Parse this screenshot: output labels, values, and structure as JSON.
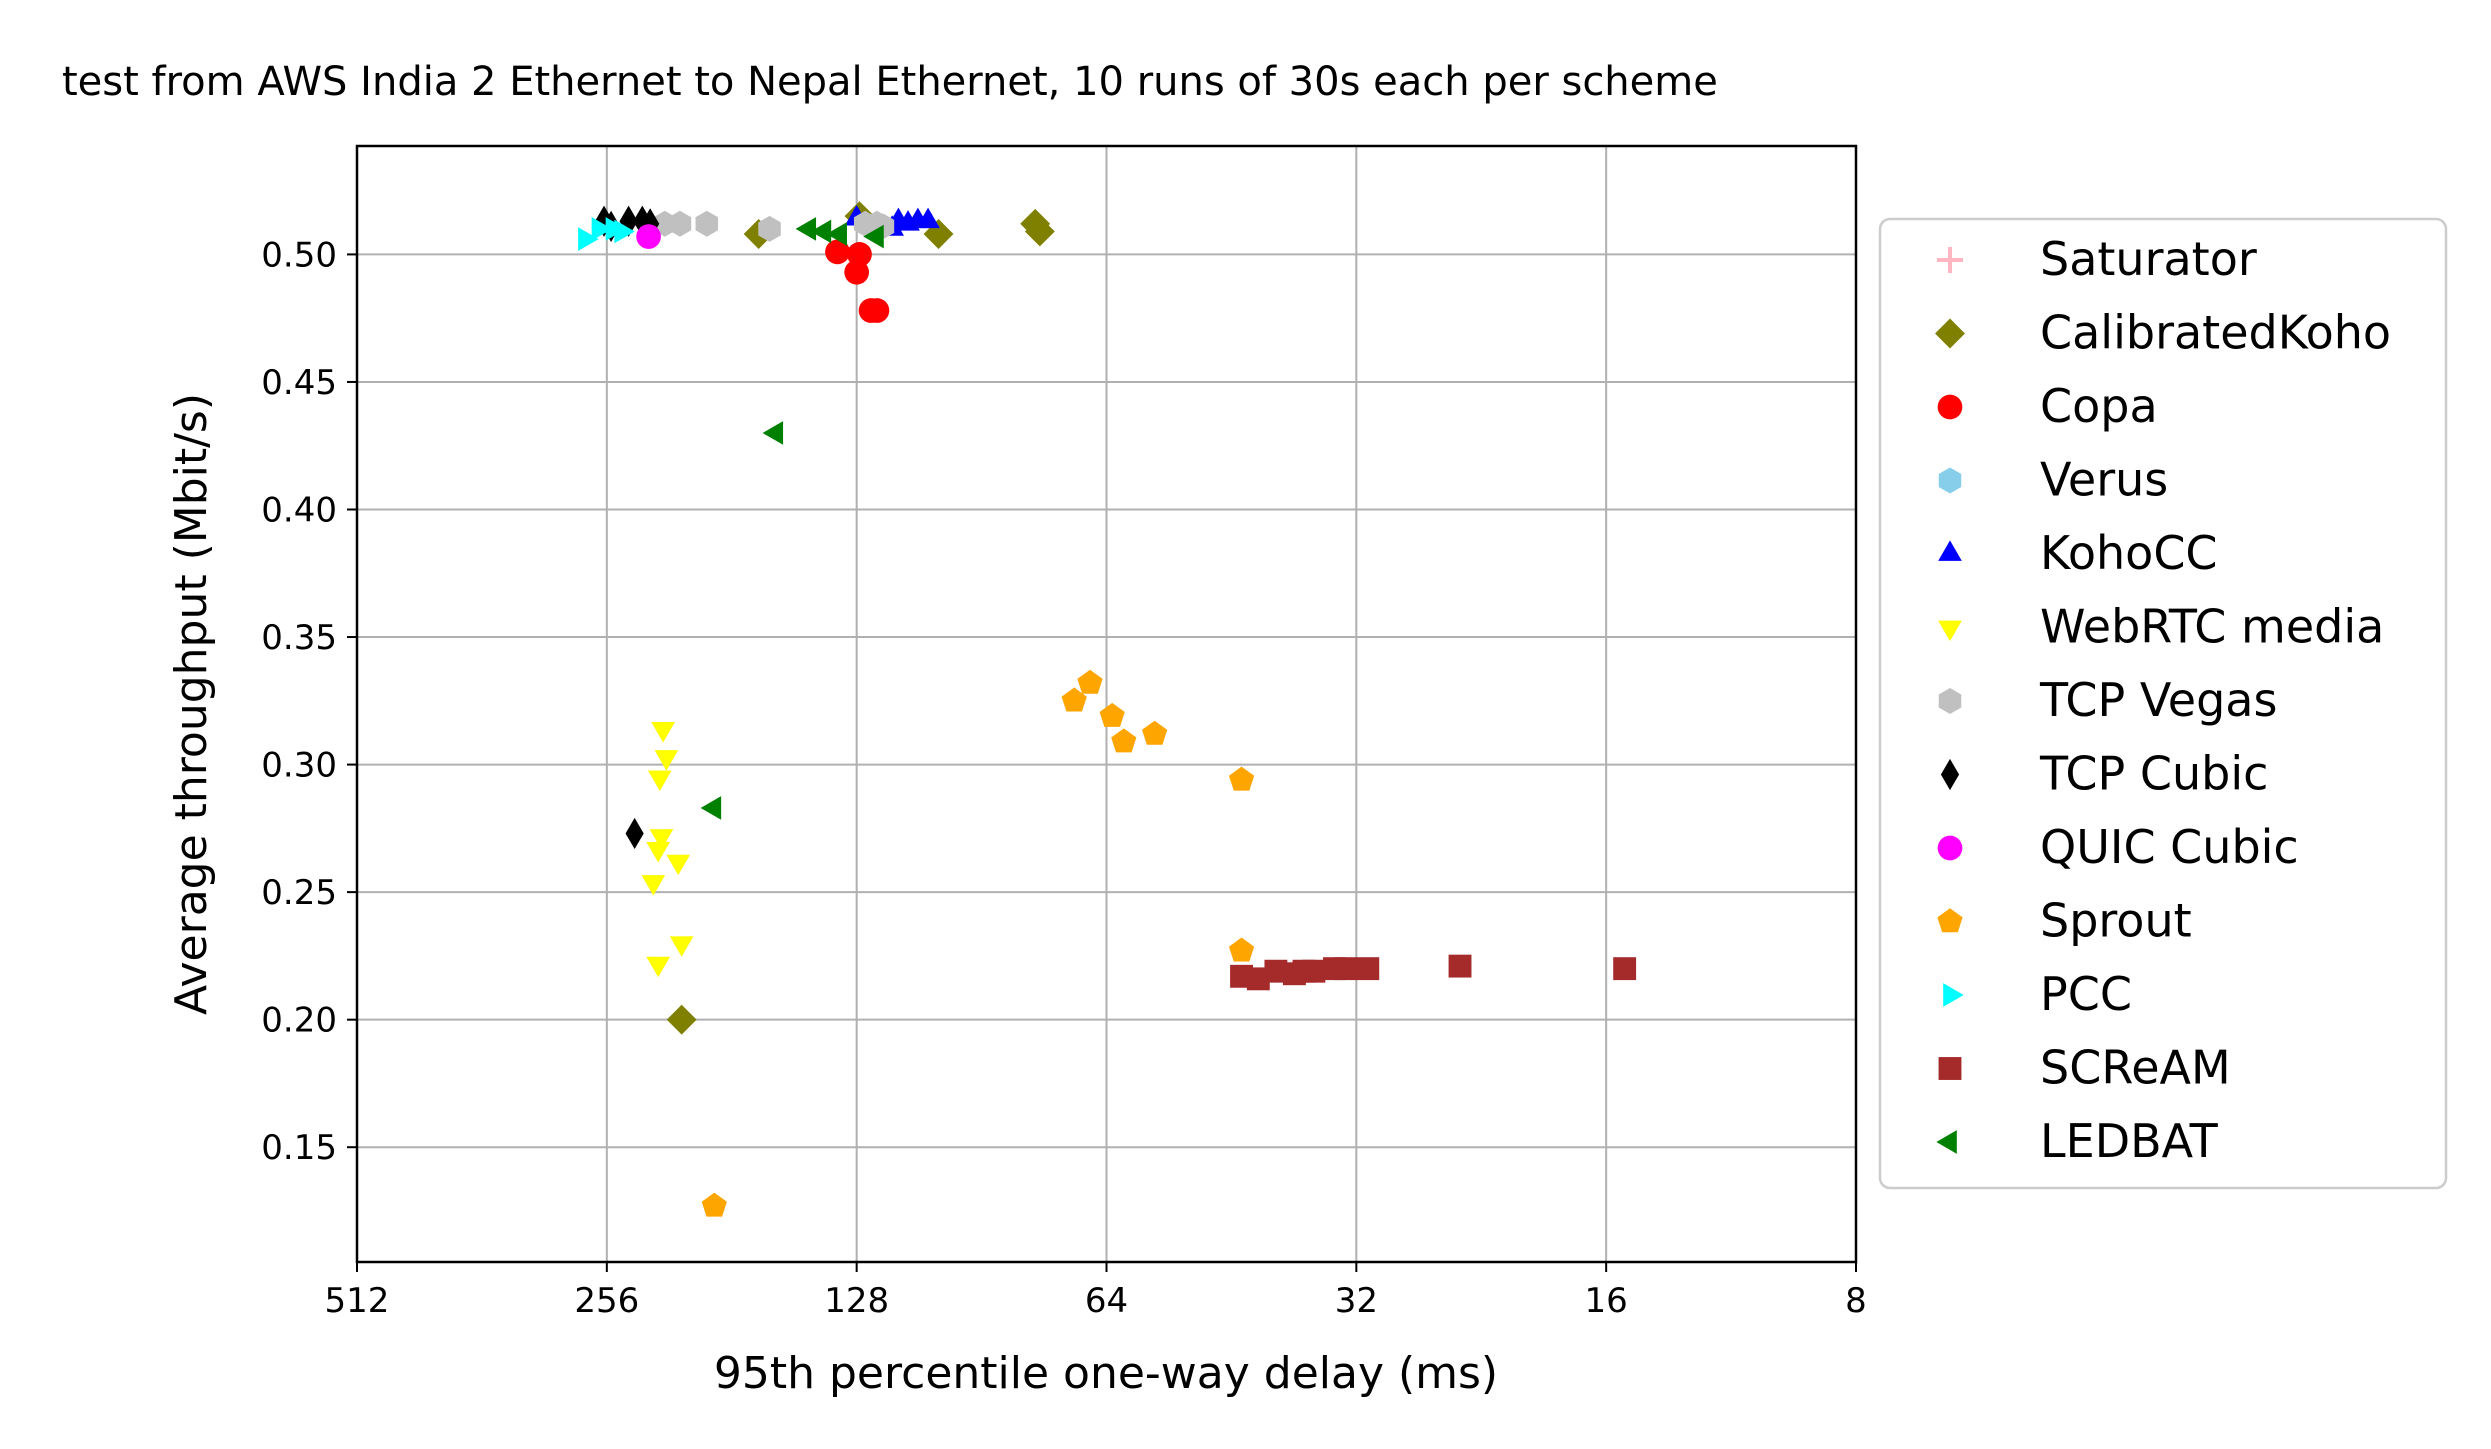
{
  "chart_data": {
    "type": "scatter",
    "title": "test from AWS India 2 Ethernet to Nepal Ethernet, 10 runs of 30s each per scheme",
    "xlabel": "95th percentile one-way delay (ms)",
    "ylabel": "Average throughput (Mbit/s)",
    "x_scale": "log2",
    "x_inverted": true,
    "xlim": [
      512,
      8
    ],
    "ylim": [
      0.105,
      0.5425
    ],
    "grid": true,
    "legend_position": "right",
    "x_ticks": [
      512,
      256,
      128,
      64,
      32,
      16,
      8
    ],
    "x_tick_labels": [
      "512",
      "256",
      "128",
      "64",
      "32",
      "16",
      "8"
    ],
    "y_ticks": [
      0.15,
      0.2,
      0.25,
      0.3,
      0.35,
      0.4,
      0.45,
      0.5
    ],
    "y_tick_labels": [
      "0.15",
      "0.20",
      "0.25",
      "0.30",
      "0.35",
      "0.40",
      "0.45",
      "0.50"
    ],
    "series": [
      {
        "name": "Saturator",
        "color": "#ffb6c1",
        "marker": "plus",
        "points": []
      },
      {
        "name": "CalibratedKoho",
        "color": "#808000",
        "marker": "diamond",
        "points": [
          [
            168,
            0.508
          ],
          [
            127,
            0.515
          ],
          [
            102,
            0.508
          ],
          [
            78,
            0.512
          ],
          [
            77,
            0.509
          ],
          [
            208,
            0.2
          ]
        ]
      },
      {
        "name": "Copa",
        "color": "#ff0000",
        "marker": "circle",
        "points": [
          [
            135,
            0.501
          ],
          [
            127,
            0.5
          ],
          [
            128,
            0.493
          ],
          [
            123,
            0.478
          ],
          [
            121,
            0.478
          ]
        ]
      },
      {
        "name": "Verus",
        "color": "#87ceeb",
        "marker": "hexagon",
        "points": []
      },
      {
        "name": "KohoCC",
        "color": "#0000ff",
        "marker": "triangle-up",
        "points": [
          [
            128,
            0.514
          ],
          [
            116,
            0.51
          ],
          [
            114,
            0.513
          ],
          [
            111,
            0.512
          ],
          [
            108,
            0.513
          ],
          [
            105,
            0.513
          ]
        ]
      },
      {
        "name": "WebRTC media",
        "color": "#ffff00",
        "marker": "triangle-down",
        "points": [
          [
            219,
            0.314
          ],
          [
            217,
            0.303
          ],
          [
            221,
            0.295
          ],
          [
            220,
            0.272
          ],
          [
            222,
            0.267
          ],
          [
            210,
            0.262
          ],
          [
            225,
            0.254
          ],
          [
            222,
            0.222
          ],
          [
            208,
            0.23
          ]
        ]
      },
      {
        "name": "TCP Vegas",
        "color": "#c0c0c0",
        "marker": "hexagon",
        "points": [
          [
            218,
            0.512
          ],
          [
            209,
            0.512
          ],
          [
            194,
            0.512
          ],
          [
            163,
            0.51
          ],
          [
            125,
            0.512
          ],
          [
            121,
            0.512
          ],
          [
            119,
            0.511
          ]
        ]
      },
      {
        "name": "TCP Cubic",
        "color": "#000000",
        "marker": "thin-diamond",
        "points": [
          [
            258,
            0.513
          ],
          [
            241,
            0.513
          ],
          [
            232,
            0.513
          ],
          [
            227,
            0.512
          ],
          [
            253,
            0.511
          ],
          [
            237,
            0.273
          ]
        ]
      },
      {
        "name": "QUIC Cubic",
        "color": "#ff00ff",
        "marker": "circle",
        "points": [
          [
            228,
            0.507
          ]
        ]
      },
      {
        "name": "Sprout",
        "color": "#ffa500",
        "marker": "pentagon",
        "points": [
          [
            67,
            0.332
          ],
          [
            70,
            0.325
          ],
          [
            63,
            0.319
          ],
          [
            61,
            0.309
          ],
          [
            56,
            0.312
          ],
          [
            44,
            0.294
          ],
          [
            44,
            0.227
          ],
          [
            190,
            0.127
          ]
        ]
      },
      {
        "name": "PCC",
        "color": "#00ffff",
        "marker": "triangle-right",
        "points": [
          [
            272,
            0.506
          ],
          [
            262,
            0.51
          ],
          [
            252,
            0.51
          ],
          [
            246,
            0.509
          ]
        ]
      },
      {
        "name": "SCReAM",
        "color": "#a52a2a",
        "marker": "square",
        "points": [
          [
            44,
            0.217
          ],
          [
            42,
            0.216
          ],
          [
            40,
            0.219
          ],
          [
            38,
            0.218
          ],
          [
            37,
            0.219
          ],
          [
            36,
            0.219
          ],
          [
            34,
            0.22
          ],
          [
            33,
            0.22
          ],
          [
            31,
            0.22
          ],
          [
            24,
            0.221
          ],
          [
            15.2,
            0.22
          ]
        ]
      },
      {
        "name": "LEDBAT",
        "color": "#008000",
        "marker": "triangle-left",
        "points": [
          [
            146,
            0.51
          ],
          [
            140,
            0.509
          ],
          [
            134,
            0.508
          ],
          [
            121,
            0.507
          ],
          [
            160,
            0.43
          ],
          [
            190,
            0.283
          ]
        ]
      }
    ]
  }
}
